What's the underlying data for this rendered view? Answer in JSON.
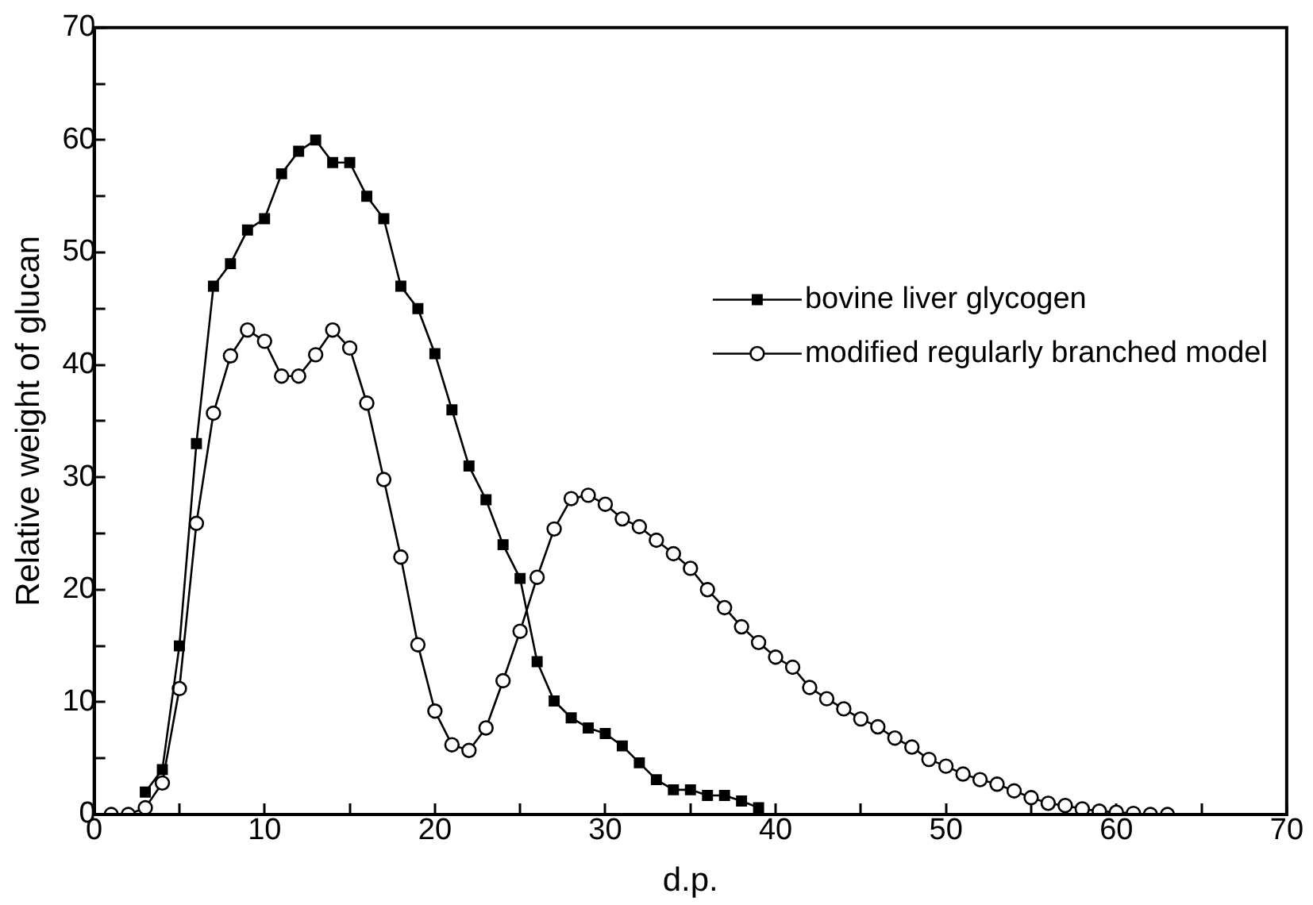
{
  "chart_data": {
    "type": "line",
    "xlabel": "d.p.",
    "ylabel": "Relative weight of glucan",
    "xlim": [
      0,
      70
    ],
    "ylim": [
      0,
      70
    ],
    "xticks": [
      0,
      {
        "value": 5,
        "label": null
      },
      10,
      {
        "value": 15,
        "label": null
      },
      20,
      {
        "value": 25,
        "label": null
      },
      30,
      {
        "value": 35,
        "label": null
      },
      40,
      {
        "value": 45,
        "label": null
      },
      50,
      {
        "value": 55,
        "label": null
      },
      60,
      {
        "value": 65,
        "label": null
      },
      70
    ],
    "yticks": [
      0,
      {
        "value": 5,
        "label": null
      },
      10,
      {
        "value": 15,
        "label": null
      },
      20,
      {
        "value": 25,
        "label": null
      },
      30,
      {
        "value": 35,
        "label": null
      },
      40,
      {
        "value": 45,
        "label": null
      },
      50,
      {
        "value": 55,
        "label": null
      },
      60,
      {
        "value": 65,
        "label": null
      },
      70
    ],
    "grid": false,
    "legend": "right",
    "line_style": "solid",
    "series": [
      {
        "name": "bovine liver glycogen",
        "color": "#000000",
        "marker": "square",
        "x": [
          3,
          4,
          5,
          6,
          7,
          8,
          9,
          10,
          11,
          12,
          13,
          14,
          15,
          16,
          17,
          18,
          19,
          20,
          21,
          22,
          23,
          24,
          25,
          26,
          27,
          28,
          29,
          30,
          31,
          32,
          33,
          34,
          35,
          36,
          37,
          38,
          39
        ],
        "values": [
          2.0,
          4.0,
          15,
          33,
          47,
          49,
          52,
          53,
          57,
          59,
          60,
          58,
          58,
          55,
          53,
          47,
          45,
          41,
          36,
          31,
          28,
          24,
          21,
          13.6,
          10.1,
          8.6,
          7.7,
          7.2,
          6.1,
          4.6,
          3.1,
          2.2,
          2.2,
          1.7,
          1.7,
          1.2,
          0.6
        ]
      },
      {
        "name": "modified regularly branched model",
        "color": "#000000",
        "marker": "circle",
        "x": [
          1,
          2,
          3,
          4,
          5,
          6,
          7,
          8,
          9,
          10,
          11,
          12,
          13,
          14,
          15,
          16,
          17,
          18,
          19,
          20,
          21,
          22,
          23,
          24,
          25,
          26,
          27,
          28,
          29,
          30,
          31,
          32,
          33,
          34,
          35,
          36,
          37,
          38,
          39,
          40,
          41,
          42,
          43,
          44,
          45,
          46,
          47,
          48,
          49,
          50,
          51,
          52,
          53,
          54,
          55,
          56,
          57,
          58,
          59,
          60,
          61,
          62,
          63
        ],
        "values": [
          0,
          0,
          0.6,
          2.8,
          11.2,
          25.9,
          35.7,
          40.8,
          43.1,
          42.1,
          39.0,
          39.0,
          40.9,
          43.1,
          41.5,
          36.6,
          29.8,
          22.9,
          15.1,
          9.2,
          6.2,
          5.7,
          7.7,
          11.9,
          16.3,
          21.1,
          25.4,
          28.1,
          28.4,
          27.6,
          26.3,
          25.6,
          24.4,
          23.2,
          21.9,
          20.0,
          18.4,
          16.7,
          15.3,
          14.0,
          13.1,
          11.3,
          10.3,
          9.4,
          8.5,
          7.8,
          6.8,
          6.0,
          4.9,
          4.3,
          3.6,
          3.1,
          2.7,
          2.1,
          1.5,
          1.0,
          0.8,
          0.5,
          0.3,
          0.2,
          0.1,
          0,
          0
        ]
      }
    ]
  }
}
